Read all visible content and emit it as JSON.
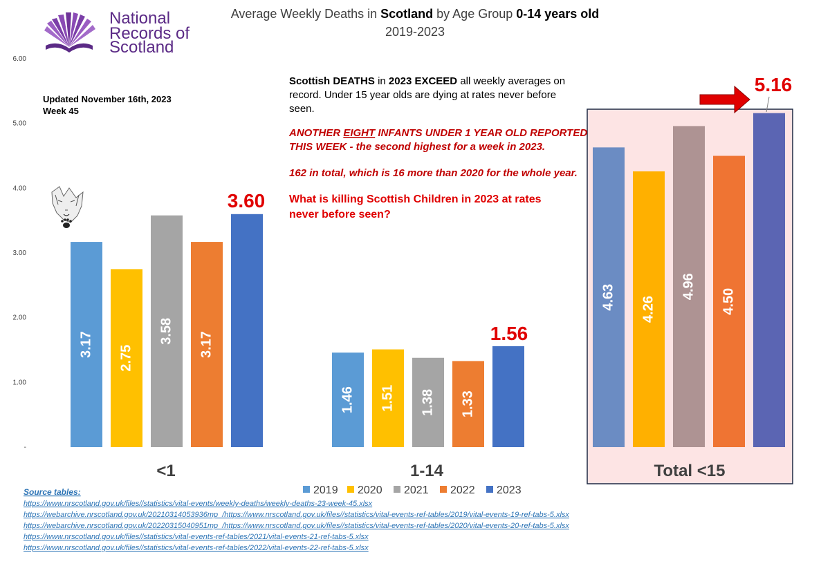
{
  "logo": {
    "lines": [
      "National",
      "Records of",
      "Scotland"
    ]
  },
  "title": {
    "prefix": "Average Weekly Deaths in ",
    "region": "Scotland",
    "middle": "  by Age Group ",
    "age": "0-14 years old",
    "years": "2019-2023"
  },
  "updated": {
    "line1": "Updated November 16th, 2023",
    "line2": "Week 45"
  },
  "annotation": {
    "line1_bold_a": "Scottish DEATHS",
    "line1_mid": " in ",
    "line1_bold_b": "2023 EXCEED",
    "line1_rest": " all weekly averages on",
    "line2": "record. Under 15 year olds are dying at rates never before",
    "line3": "seen.",
    "red1_a": "ANOTHER ",
    "red1_b": "EIGHT",
    "red1_c": " INFANTS UNDER 1 YEAR OLD REPORTED",
    "red2": "THIS WEEK - the second highest for a week in 2023.",
    "red3": "162 in total, which is 16 more than 2020 for the whole year.",
    "q1": "What is killing Scottish Children in 2023 at rates",
    "q2": "never before seen?"
  },
  "colors": {
    "s2019": "#5b9bd5",
    "s2020": "#ffc000",
    "s2021": "#a5a5a5",
    "s2022": "#ed7d31",
    "s2023": "#4472c4",
    "t2019": "#6b8cc3",
    "t2020": "#ffb000",
    "t2021": "#ae9393",
    "t2022": "#ef7433",
    "t2023": "#5b65b3",
    "highlight": "#e00000",
    "box_fill": "#fde4e4",
    "box_stroke": "#1f2a44"
  },
  "chart_data": {
    "type": "bar",
    "title": "Average Weekly Deaths in Scotland by Age Group 0-14 years old 2019-2023",
    "categories": [
      "<1",
      "1-14",
      "Total <15"
    ],
    "series": [
      {
        "name": "2019",
        "values": [
          3.17,
          1.46,
          4.63
        ],
        "labels": [
          "3.17",
          "1.46",
          "4.63"
        ]
      },
      {
        "name": "2020",
        "values": [
          2.75,
          1.51,
          4.26
        ],
        "labels": [
          "2.75",
          "1.51",
          "4.26"
        ]
      },
      {
        "name": "2021",
        "values": [
          3.58,
          1.38,
          4.96
        ],
        "labels": [
          "3.58",
          "1.38",
          "4.96"
        ]
      },
      {
        "name": "2022",
        "values": [
          3.17,
          1.33,
          4.5
        ],
        "labels": [
          "3.17",
          "1.33",
          "4.50"
        ]
      },
      {
        "name": "2023",
        "values": [
          3.6,
          1.56,
          5.16
        ],
        "labels": [
          "3.60",
          "1.56",
          "5.16"
        ]
      }
    ],
    "y_ticks": [
      "-",
      "1.00",
      "2.00",
      "3.00",
      "4.00",
      "5.00",
      "6.00"
    ],
    "ylim": [
      0,
      6
    ],
    "xlabel": "",
    "ylabel": "",
    "legend": {
      "position": "bottom-center",
      "entries": [
        "2019",
        "2020",
        "2021",
        "2022",
        "2023"
      ]
    }
  },
  "sources": {
    "heading": "Source tables:",
    "links": [
      "https://www.nrscotland.gov.uk/files//statistics/vital-events/weekly-deaths/weekly-deaths-23-week-45.xlsx",
      "https://webarchive.nrscotland.gov.uk/20210314053936mp_/https://www.nrscotland.gov.uk/files//statistics/vital-events-ref-tables/2019/vital-events-19-ref-tabs-5.xlsx",
      "https://webarchive.nrscotland.gov.uk/20220315040951mp_/https://www.nrscotland.gov.uk/files//statistics/vital-events-ref-tables/2020/vital-events-20-ref-tabs-5.xlsx",
      "https://www.nrscotland.gov.uk/files//statistics/vital-events-ref-tables/2021/vital-events-21-ref-tabs-5.xlsx",
      "https://www.nrscotland.gov.uk/files//statistics/vital-events-ref-tables/2022/vital-events-22-ref-tabs-5.xlsx"
    ]
  }
}
